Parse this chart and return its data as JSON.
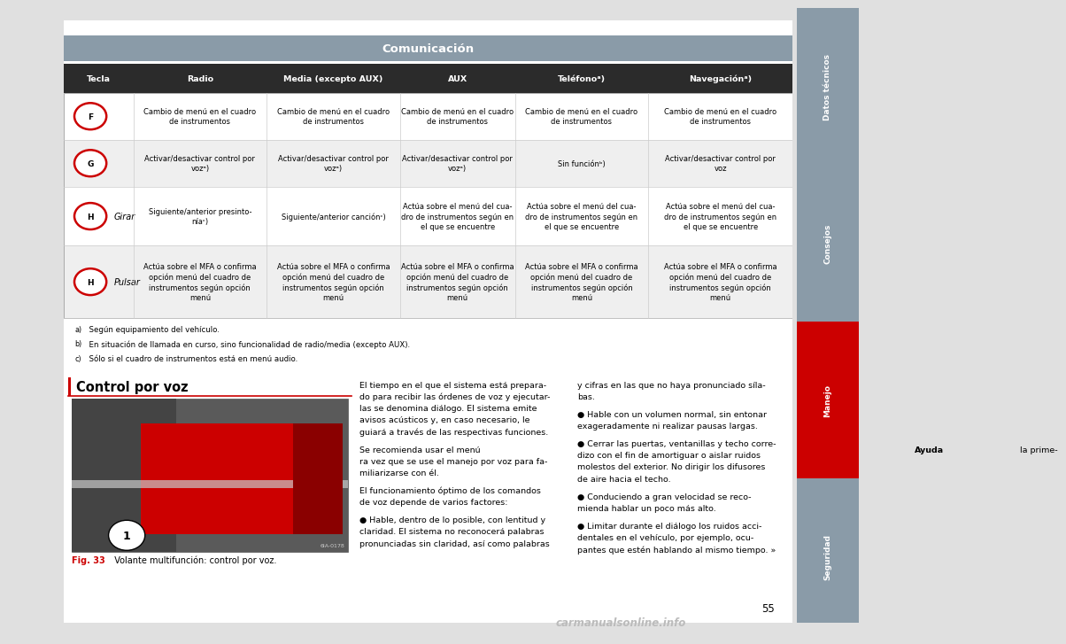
{
  "title": "Comunicación",
  "title_bg": "#8a9ba8",
  "title_color": "#ffffff",
  "header_bg": "#2b2b2b",
  "header_color": "#ffffff",
  "row_bg_alt": "#efefef",
  "row_bg_white": "#ffffff",
  "col_headers": [
    "Tecla",
    "Radio",
    "Media (excepto AUX)",
    "AUX",
    "Teléfonoᵃ)",
    "Navegaciónᵃ)"
  ],
  "rows": [
    {
      "key_label": "F",
      "key_sublabel": null,
      "cells": [
        "Cambio de menú en el cuadro\nde instrumentos",
        "Cambio de menú en el cuadro\nde instrumentos",
        "Cambio de menú en el cuadro\nde instrumentos",
        "Cambio de menú en el cuadro\nde instrumentos",
        "Cambio de menú en el cuadro\nde instrumentos"
      ],
      "bg": "#ffffff"
    },
    {
      "key_label": "G",
      "key_sublabel": null,
      "cells": [
        "Activar/desactivar control por\nvozᵃ)",
        "Activar/desactivar control por\nvozᵃ)",
        "Activar/desactivar control por\nvozᵃ)",
        "Sin funciónᵇ)",
        "Activar/desactivar control por\nvoz"
      ],
      "bg": "#efefef"
    },
    {
      "key_label": "H",
      "key_sublabel": "Girar",
      "cells": [
        "Siguiente/anterior presinto-\nníaᶜ)",
        "Siguiente/anterior canciónᶜ)",
        "Actúa sobre el menú del cua-\ndro de instrumentos según en\nel que se encuentre",
        "Actúa sobre el menú del cua-\ndro de instrumentos según en\nel que se encuentre",
        "Actúa sobre el menú del cua-\ndro de instrumentos según en\nel que se encuentre"
      ],
      "bg": "#ffffff"
    },
    {
      "key_label": "H",
      "key_sublabel": "Pulsar",
      "cells": [
        "Actúa sobre el MFA o confirma\nopción menú del cuadro de\ninstrumentos según opción\nmenú",
        "Actúa sobre el MFA o confirma\nopción menú del cuadro de\ninstrumentos según opción\nmenú",
        "Actúa sobre el MFA o confirma\nopción menú del cuadro de\ninstrumentos según opción\nmenú",
        "Actúa sobre el MFA o confirma\nopción menú del cuadro de\ninstrumentos según opción\nmenú",
        "Actúa sobre el MFA o confirma\nopción menú del cuadro de\ninstrumentos según opción\nmenú"
      ],
      "bg": "#efefef"
    }
  ],
  "footnotes": [
    [
      "a)",
      "  Según equipamiento del vehículo."
    ],
    [
      "b)",
      "  En situación de llamada en curso, sino funcionalidad de radio/media (excepto AUX)."
    ],
    [
      "c)",
      "  Sólo si el cuadro de instrumentos está en menú audio."
    ]
  ],
  "section_title": "Control por voz",
  "red_color": "#cc0000",
  "fig_caption_bold": "Fig. 33",
  "fig_caption_rest": "  Volante multifunción: control por voz.",
  "col1_lines": [
    [
      "normal",
      "El tiempo en el que el sistema está prepara-"
    ],
    [
      "normal",
      "do para recibir las órdenes de voz y ejecutar-"
    ],
    [
      "normal",
      "las se denomina diálogo. El sistema emite"
    ],
    [
      "normal",
      "avisos acústicos y, en caso necesario, le"
    ],
    [
      "normal",
      "guiará a través de las respectivas funciones."
    ],
    [
      "blank",
      ""
    ],
    [
      "mixed",
      "Se recomienda usar el menú ",
      "Ayuda",
      " la prime-"
    ],
    [
      "normal",
      "ra vez que se use el manejo por voz para fa-"
    ],
    [
      "normal",
      "miliarizarse con él."
    ],
    [
      "blank",
      ""
    ],
    [
      "normal",
      "El funcionamiento óptimo de los comandos"
    ],
    [
      "normal",
      "de voz depende de varios factores:"
    ],
    [
      "blank",
      ""
    ],
    [
      "normal",
      "● Hable, dentro de lo posible, con lentitud y"
    ],
    [
      "normal",
      "claridad. El sistema no reconocerá palabras"
    ],
    [
      "normal",
      "pronunciadas sin claridad, así como palabras"
    ]
  ],
  "col2_lines": [
    [
      "normal",
      "y cifras en las que no haya pronunciado síla-"
    ],
    [
      "normal",
      "bas."
    ],
    [
      "blank",
      ""
    ],
    [
      "normal",
      "● Hable con un volumen normal, sin entonar"
    ],
    [
      "normal",
      "exageradamente ni realizar pausas largas."
    ],
    [
      "blank",
      ""
    ],
    [
      "normal",
      "● Cerrar las puertas, ventanillas y techo corre-"
    ],
    [
      "normal",
      "dizo con el fin de amortiguar o aislar ruidos"
    ],
    [
      "normal",
      "molestos del exterior. No dirigir los difusores"
    ],
    [
      "normal",
      "de aire hacia el techo."
    ],
    [
      "blank",
      ""
    ],
    [
      "normal",
      "● Conduciendo a gran velocidad se reco-"
    ],
    [
      "normal",
      "mienda hablar un poco más alto."
    ],
    [
      "blank",
      ""
    ],
    [
      "normal",
      "● Limitar durante el diálogo los ruidos acci-"
    ],
    [
      "normal",
      "dentales en el vehículo, por ejemplo, ocu-"
    ],
    [
      "normal",
      "pantes que estén hablando al mismo tiempo. »"
    ]
  ],
  "sidebar_labels": [
    "Datos técnicos",
    "Consejos",
    "Manejo",
    "Seguridad"
  ],
  "sidebar_colors": [
    "#8a9ba8",
    "#8a9ba8",
    "#cc0000",
    "#8a9ba8"
  ],
  "page_number": "55",
  "page_bg": "#e0e0e0",
  "content_bg": "#ffffff",
  "watermark": "carmanualsonline.info"
}
